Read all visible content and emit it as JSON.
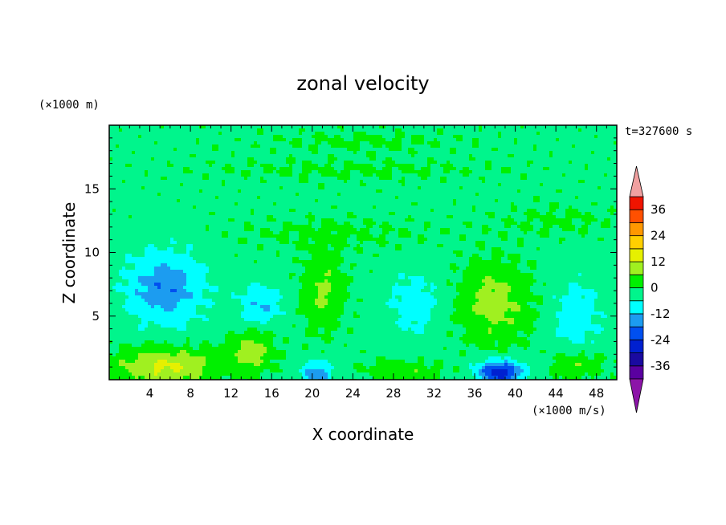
{
  "chart_data": {
    "type": "heatmap",
    "title": "zonal velocity",
    "xlabel": "X coordinate",
    "ylabel": "Z coordinate",
    "x_unit": "(×1000 m/s)",
    "y_unit": "(×1000 m)",
    "time_label": "t=327600 s",
    "xlim": [
      0,
      50
    ],
    "ylim": [
      0,
      20
    ],
    "xticks": [
      4,
      8,
      12,
      16,
      20,
      24,
      28,
      32,
      36,
      40,
      44,
      48
    ],
    "yticks": [
      5,
      10,
      15
    ],
    "colorbar": {
      "ticks": [
        36,
        24,
        12,
        0,
        -12,
        -24,
        -36
      ],
      "min": -42,
      "max": 42,
      "extend": "both",
      "levels": [
        {
          "from": -42,
          "to": -36,
          "color": "#5a00a0"
        },
        {
          "from": -36,
          "to": -30,
          "color": "#1a0aa0"
        },
        {
          "from": -30,
          "to": -24,
          "color": "#0020d0"
        },
        {
          "from": -24,
          "to": -18,
          "color": "#0050f0"
        },
        {
          "from": -18,
          "to": -12,
          "color": "#1c9cf0"
        },
        {
          "from": -12,
          "to": -6,
          "color": "#00ffff"
        },
        {
          "from": -6,
          "to": 0,
          "color": "#00f58c"
        },
        {
          "from": 0,
          "to": 6,
          "color": "#00f000"
        },
        {
          "from": 6,
          "to": 12,
          "color": "#a0f020"
        },
        {
          "from": 12,
          "to": 18,
          "color": "#e6f000"
        },
        {
          "from": 18,
          "to": 24,
          "color": "#ffd000"
        },
        {
          "from": 24,
          "to": 30,
          "color": "#ff9800"
        },
        {
          "from": 30,
          "to": 36,
          "color": "#ff5000"
        },
        {
          "from": 36,
          "to": 42,
          "color": "#f01400"
        }
      ],
      "under_color": "#8c14a8",
      "over_color": "#f0a0a0"
    },
    "field_features": [
      {
        "x": 5.5,
        "z": 7.2,
        "value": -15,
        "sx": 3.8,
        "sz": 2.8
      },
      {
        "x": 15,
        "z": 6,
        "value": -10,
        "sx": 2.2,
        "sz": 1.6
      },
      {
        "x": 5.5,
        "z": 1,
        "value": 15,
        "sx": 5,
        "sz": 1.5
      },
      {
        "x": 14,
        "z": 2.2,
        "value": 10,
        "sx": 2.2,
        "sz": 1.6
      },
      {
        "x": 21,
        "z": 7,
        "value": 9,
        "sx": 2.0,
        "sz": 3.0
      },
      {
        "x": 38,
        "z": 6,
        "value": 11,
        "sx": 3.4,
        "sz": 3.0
      },
      {
        "x": 30,
        "z": 6,
        "value": -8,
        "sx": 2.5,
        "sz": 2.5
      },
      {
        "x": 38.5,
        "z": 0.6,
        "value": -26,
        "sx": 2.2,
        "sz": 0.9
      },
      {
        "x": 20.5,
        "z": 0.5,
        "value": -15,
        "sx": 1.4,
        "sz": 0.9
      },
      {
        "x": 46,
        "z": 5,
        "value": -8,
        "sx": 2.5,
        "sz": 3.0
      },
      {
        "x": 46,
        "z": 1.2,
        "value": 8,
        "sx": 2.5,
        "sz": 1.2
      },
      {
        "x": 29,
        "z": 0.7,
        "value": 7,
        "sx": 3.5,
        "sz": 0.8
      },
      {
        "x": 25,
        "z": 18.7,
        "value": 3,
        "sx": 10,
        "sz": 0.8
      },
      {
        "x": 24,
        "z": 16.5,
        "value": 3,
        "sx": 14,
        "sz": 0.8
      },
      {
        "x": 44,
        "z": 12.5,
        "value": 3,
        "sx": 6,
        "sz": 1.2
      },
      {
        "x": 22,
        "z": 11.5,
        "value": 3,
        "sx": 10,
        "sz": 1.2
      }
    ]
  }
}
